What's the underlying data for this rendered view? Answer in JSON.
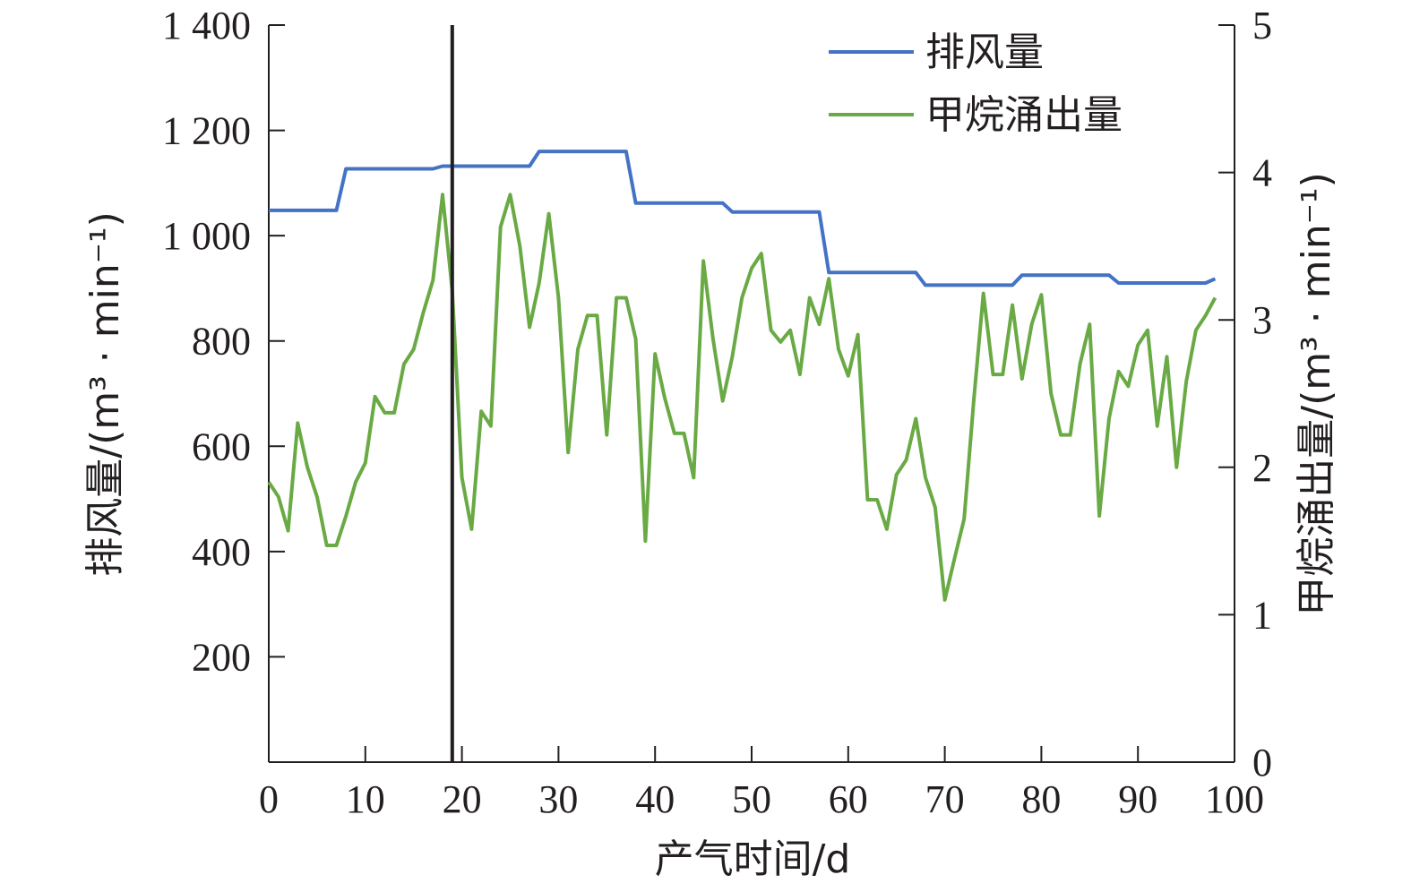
{
  "chart_data": {
    "type": "line",
    "xlabel": "产气时间/d",
    "ylabel_left": "排风量/(m³ · min⁻¹)",
    "ylabel_right": "甲烷涌出量/(m³ · min⁻¹)",
    "xlim": [
      0,
      100
    ],
    "ylim_left": [
      0,
      1400
    ],
    "ylim_right": [
      0,
      5
    ],
    "x_ticks": [
      "0",
      "10",
      "20",
      "30",
      "40",
      "50",
      "60",
      "70",
      "80",
      "90",
      "100"
    ],
    "y_left_ticks": [
      "200",
      "400",
      "600",
      "800",
      "1 000",
      "1 200",
      "1 400"
    ],
    "y_right_ticks": [
      "0",
      "1",
      "2",
      "3",
      "4",
      "5"
    ],
    "vertical_marker_x": 19,
    "grid": false,
    "legend_position": "top-right",
    "series": [
      {
        "name": "排风量",
        "axis": "left",
        "color": "#4472c4",
        "points": [
          [
            0,
            1048
          ],
          [
            7,
            1048
          ],
          [
            8,
            1127
          ],
          [
            17,
            1127
          ],
          [
            18,
            1132
          ],
          [
            27,
            1132
          ],
          [
            28,
            1160
          ],
          [
            37,
            1160
          ],
          [
            38,
            1062
          ],
          [
            47,
            1062
          ],
          [
            48,
            1045
          ],
          [
            57,
            1045
          ],
          [
            58,
            930
          ],
          [
            67,
            930
          ],
          [
            68,
            906
          ],
          [
            77,
            906
          ],
          [
            78,
            925
          ],
          [
            87,
            925
          ],
          [
            88,
            910
          ],
          [
            97,
            910
          ],
          [
            98,
            918
          ]
        ]
      },
      {
        "name": "甲烷涌出量",
        "axis": "right",
        "color": "#6aaa45",
        "points": [
          [
            0,
            1.9
          ],
          [
            1,
            1.8
          ],
          [
            2,
            1.57
          ],
          [
            3,
            2.3
          ],
          [
            4,
            2.0
          ],
          [
            5,
            1.8
          ],
          [
            6,
            1.47
          ],
          [
            7,
            1.47
          ],
          [
            8,
            1.67
          ],
          [
            9,
            1.9
          ],
          [
            10,
            2.03
          ],
          [
            11,
            2.48
          ],
          [
            12,
            2.37
          ],
          [
            13,
            2.37
          ],
          [
            14,
            2.7
          ],
          [
            15,
            2.8
          ],
          [
            16,
            3.05
          ],
          [
            17,
            3.27
          ],
          [
            18,
            3.85
          ],
          [
            19,
            3.2
          ],
          [
            20,
            1.93
          ],
          [
            21,
            1.58
          ],
          [
            22,
            2.38
          ],
          [
            23,
            2.28
          ],
          [
            24,
            3.63
          ],
          [
            25,
            3.85
          ],
          [
            26,
            3.5
          ],
          [
            27,
            2.95
          ],
          [
            28,
            3.25
          ],
          [
            29,
            3.72
          ],
          [
            30,
            3.15
          ],
          [
            31,
            2.1
          ],
          [
            32,
            2.8
          ],
          [
            33,
            3.03
          ],
          [
            34,
            3.03
          ],
          [
            35,
            2.22
          ],
          [
            36,
            3.15
          ],
          [
            37,
            3.15
          ],
          [
            38,
            2.87
          ],
          [
            39,
            1.5
          ],
          [
            40,
            2.77
          ],
          [
            41,
            2.47
          ],
          [
            42,
            2.23
          ],
          [
            43,
            2.23
          ],
          [
            44,
            1.93
          ],
          [
            45,
            3.4
          ],
          [
            46,
            2.87
          ],
          [
            47,
            2.45
          ],
          [
            48,
            2.75
          ],
          [
            49,
            3.15
          ],
          [
            50,
            3.35
          ],
          [
            51,
            3.45
          ],
          [
            52,
            2.93
          ],
          [
            53,
            2.85
          ],
          [
            54,
            2.93
          ],
          [
            55,
            2.63
          ],
          [
            56,
            3.15
          ],
          [
            57,
            2.97
          ],
          [
            58,
            3.28
          ],
          [
            59,
            2.8
          ],
          [
            60,
            2.62
          ],
          [
            61,
            2.9
          ],
          [
            62,
            1.78
          ],
          [
            63,
            1.78
          ],
          [
            64,
            1.58
          ],
          [
            65,
            1.95
          ],
          [
            66,
            2.05
          ],
          [
            67,
            2.33
          ],
          [
            68,
            1.93
          ],
          [
            69,
            1.73
          ],
          [
            70,
            1.1
          ],
          [
            71,
            1.38
          ],
          [
            72,
            1.65
          ],
          [
            73,
            2.45
          ],
          [
            74,
            3.18
          ],
          [
            75,
            2.63
          ],
          [
            76,
            2.63
          ],
          [
            77,
            3.1
          ],
          [
            78,
            2.6
          ],
          [
            79,
            2.97
          ],
          [
            80,
            3.17
          ],
          [
            81,
            2.5
          ],
          [
            82,
            2.22
          ],
          [
            83,
            2.22
          ],
          [
            84,
            2.7
          ],
          [
            85,
            2.97
          ],
          [
            86,
            1.67
          ],
          [
            87,
            2.33
          ],
          [
            88,
            2.65
          ],
          [
            89,
            2.55
          ],
          [
            90,
            2.83
          ],
          [
            91,
            2.93
          ],
          [
            92,
            2.28
          ],
          [
            93,
            2.75
          ],
          [
            94,
            2.0
          ],
          [
            95,
            2.58
          ],
          [
            96,
            2.93
          ],
          [
            97,
            3.03
          ],
          [
            98,
            3.15
          ]
        ]
      }
    ]
  }
}
